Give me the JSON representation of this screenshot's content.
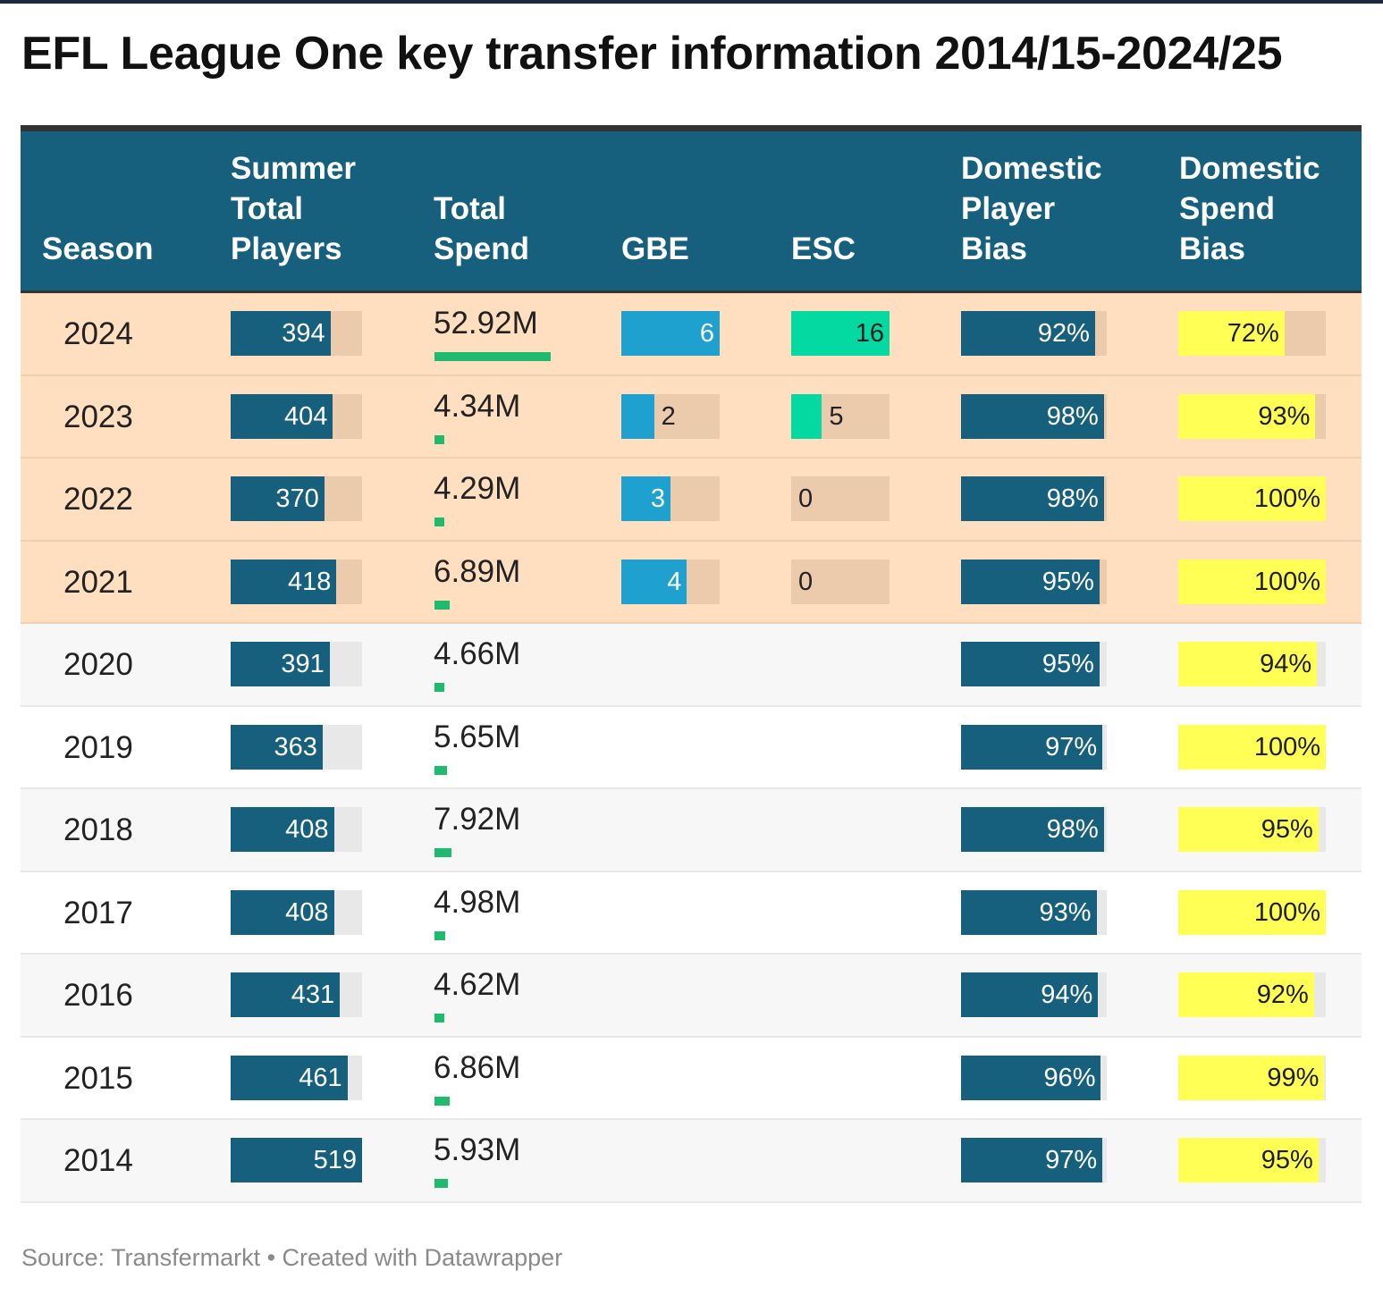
{
  "title": "EFL League One key transfer information 2014/15-2024/25",
  "source": "Source: Transfermarkt • Created with Datawrapper",
  "colors": {
    "header_bg": "#17607d",
    "players_bar": "#17607d",
    "spend_bar": "#1fba6d",
    "gbe_bar": "#1ea1cf",
    "esc_bar": "#03d9a0",
    "domestic_player_bar": "#17607d",
    "domestic_spend_bar": "#ffff55",
    "highlight_row": "#ffdfbf"
  },
  "chart_data": {
    "type": "table",
    "columns": [
      {
        "key": "season",
        "label": "Season"
      },
      {
        "key": "players",
        "label": "Summer\nTotal\nPlayers"
      },
      {
        "key": "spend",
        "label": "Total\nSpend"
      },
      {
        "key": "gbe",
        "label": "GBE"
      },
      {
        "key": "esc",
        "label": "ESC"
      },
      {
        "key": "dom_player",
        "label": "Domestic\nPlayer\nBias"
      },
      {
        "key": "dom_spend",
        "label": "Domestic\nSpend\nBias"
      }
    ],
    "scales": {
      "players_max": 519,
      "spend_max": 52.92,
      "gbe_max": 6,
      "esc_max": 16,
      "percent_max": 100
    },
    "rows": [
      {
        "season": "2024",
        "highlight": true,
        "players": 394,
        "spend": 52.92,
        "spend_label": "52.92M",
        "gbe": 6,
        "esc": 16,
        "dom_player": 92,
        "dom_spend": 72
      },
      {
        "season": "2023",
        "highlight": true,
        "players": 404,
        "spend": 4.34,
        "spend_label": "4.34M",
        "gbe": 2,
        "esc": 5,
        "dom_player": 98,
        "dom_spend": 93
      },
      {
        "season": "2022",
        "highlight": true,
        "players": 370,
        "spend": 4.29,
        "spend_label": "4.29M",
        "gbe": 3,
        "esc": 0,
        "dom_player": 98,
        "dom_spend": 100
      },
      {
        "season": "2021",
        "highlight": true,
        "players": 418,
        "spend": 6.89,
        "spend_label": "6.89M",
        "gbe": 4,
        "esc": 0,
        "dom_player": 95,
        "dom_spend": 100
      },
      {
        "season": "2020",
        "highlight": false,
        "players": 391,
        "spend": 4.66,
        "spend_label": "4.66M",
        "gbe": null,
        "esc": null,
        "dom_player": 95,
        "dom_spend": 94
      },
      {
        "season": "2019",
        "highlight": false,
        "players": 363,
        "spend": 5.65,
        "spend_label": "5.65M",
        "gbe": null,
        "esc": null,
        "dom_player": 97,
        "dom_spend": 100
      },
      {
        "season": "2018",
        "highlight": false,
        "players": 408,
        "spend": 7.92,
        "spend_label": "7.92M",
        "gbe": null,
        "esc": null,
        "dom_player": 98,
        "dom_spend": 95
      },
      {
        "season": "2017",
        "highlight": false,
        "players": 408,
        "spend": 4.98,
        "spend_label": "4.98M",
        "gbe": null,
        "esc": null,
        "dom_player": 93,
        "dom_spend": 100
      },
      {
        "season": "2016",
        "highlight": false,
        "players": 431,
        "spend": 4.62,
        "spend_label": "4.62M",
        "gbe": null,
        "esc": null,
        "dom_player": 94,
        "dom_spend": 92
      },
      {
        "season": "2015",
        "highlight": false,
        "players": 461,
        "spend": 6.86,
        "spend_label": "6.86M",
        "gbe": null,
        "esc": null,
        "dom_player": 96,
        "dom_spend": 99
      },
      {
        "season": "2014",
        "highlight": false,
        "players": 519,
        "spend": 5.93,
        "spend_label": "5.93M",
        "gbe": null,
        "esc": null,
        "dom_player": 97,
        "dom_spend": 95
      }
    ]
  }
}
